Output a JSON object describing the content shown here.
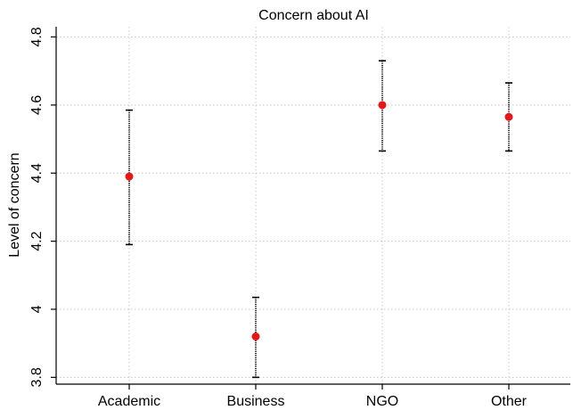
{
  "chart_data": {
    "type": "scatter",
    "title": "Concern about AI",
    "xlabel": "",
    "ylabel": "Level of concern",
    "categories": [
      "Academic",
      "Business",
      "NGO",
      "Other"
    ],
    "series": [
      {
        "values": [
          4.39,
          3.92,
          4.6,
          4.565
        ],
        "lower": [
          4.19,
          3.8,
          4.465,
          4.465
        ],
        "upper": [
          4.585,
          4.035,
          4.73,
          4.665
        ]
      }
    ],
    "ylim": [
      3.78,
      4.83
    ],
    "yticks": [
      3.8,
      4,
      4.2,
      4.4,
      4.6,
      4.8
    ],
    "ytick_labels": [
      "3.8",
      "4",
      "4.2",
      "4.4",
      "4.6",
      "4.8"
    ],
    "grid": true,
    "colors": {
      "point": "#e3181a",
      "errorbar": "#000000"
    }
  }
}
